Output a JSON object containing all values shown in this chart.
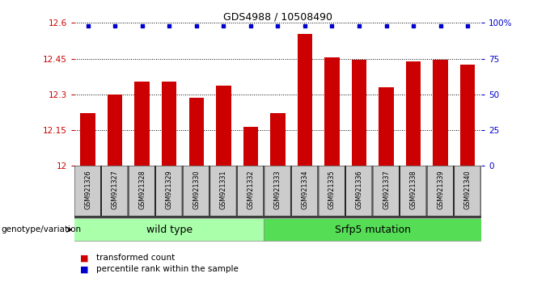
{
  "title": "GDS4988 / 10508490",
  "samples": [
    "GSM921326",
    "GSM921327",
    "GSM921328",
    "GSM921329",
    "GSM921330",
    "GSM921331",
    "GSM921332",
    "GSM921333",
    "GSM921334",
    "GSM921335",
    "GSM921336",
    "GSM921337",
    "GSM921338",
    "GSM921339",
    "GSM921340"
  ],
  "transformed_counts": [
    12.22,
    12.3,
    12.355,
    12.355,
    12.285,
    12.335,
    12.165,
    12.22,
    12.555,
    12.455,
    12.445,
    12.33,
    12.44,
    12.445,
    12.425
  ],
  "ymin": 12.0,
  "ymax": 12.6,
  "yticks": [
    12.0,
    12.15,
    12.3,
    12.45,
    12.6
  ],
  "ytick_labels": [
    "12",
    "12.15",
    "12.3",
    "12.45",
    "12.6"
  ],
  "right_yticks": [
    0,
    25,
    50,
    75,
    100
  ],
  "right_ytick_labels": [
    "0",
    "25",
    "50",
    "75",
    "100%"
  ],
  "bar_color": "#cc0000",
  "dot_color": "#0000cc",
  "wild_type_count": 7,
  "mutation_count": 8,
  "wild_type_label": "wild type",
  "mutation_label": "Srfp5 mutation",
  "genotype_label": "genotype/variation",
  "legend_bar_label": "transformed count",
  "legend_dot_label": "percentile rank within the sample",
  "wild_type_color": "#aaffaa",
  "mutation_color": "#55dd55",
  "tick_bg_color": "#cccccc",
  "separator_color": "#333333"
}
